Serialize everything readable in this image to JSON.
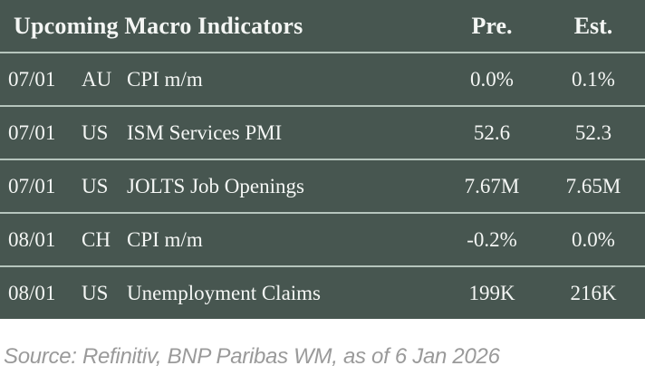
{
  "table": {
    "title": "Upcoming Macro Indicators",
    "columns": {
      "pre": "Pre.",
      "est": "Est."
    },
    "rows": [
      {
        "date": "07/01",
        "country": "AU",
        "indicator": "CPI m/m",
        "pre": "0.0%",
        "est": "0.1%"
      },
      {
        "date": "07/01",
        "country": "US",
        "indicator": "ISM Services PMI",
        "pre": "52.6",
        "est": "52.3"
      },
      {
        "date": "07/01",
        "country": "US",
        "indicator": "JOLTS Job Openings",
        "pre": "7.67M",
        "est": "7.65M"
      },
      {
        "date": "08/01",
        "country": "CH",
        "indicator": "CPI m/m",
        "pre": "-0.2%",
        "est": "0.0%"
      },
      {
        "date": "08/01",
        "country": "US",
        "indicator": "Unemployment Claims",
        "pre": "199K",
        "est": "216K"
      }
    ]
  },
  "footer": {
    "source": "Source: Refinitiv, BNP Paribas WM, as of 6 Jan 2026"
  },
  "colors": {
    "table_background": "#475650",
    "separator": "#b6c5bd",
    "table_text": "#f4f6f4",
    "source_text": "#9a9a9a",
    "page_background": "#ffffff"
  }
}
